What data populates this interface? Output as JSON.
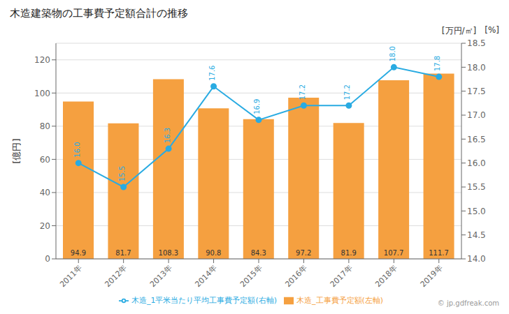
{
  "chart_data": {
    "type": "bar",
    "title": "木造建築物の工事費予定額合計の推移",
    "categories": [
      "2011年",
      "2012年",
      "2013年",
      "2014年",
      "2015年",
      "2016年",
      "2017年",
      "2018年",
      "2019年"
    ],
    "series": [
      {
        "name": "木造_工事費予定額(左軸)",
        "type": "bar",
        "color": "#F5A040",
        "values": [
          94.9,
          81.7,
          108.3,
          90.8,
          84.3,
          97.2,
          81.9,
          107.7,
          111.7
        ]
      },
      {
        "name": "木造_1平米当たり平均工事費予定額(右軸)",
        "type": "line",
        "axis": "y2",
        "color": "#29ABE2",
        "marker": "circle",
        "values": [
          16.0,
          15.5,
          16.3,
          17.6,
          16.9,
          17.2,
          17.2,
          18.0,
          17.8
        ],
        "value_labels": [
          "16.0",
          "15.5",
          "16.3",
          "17.6",
          "16.9",
          "17.2",
          "17.2",
          "18.0",
          "17.8"
        ]
      }
    ],
    "ylabel": "[億円]",
    "y2label": "[万円/㎡]",
    "annotations": [
      "[%]",
      "© jp.gdfreak.com"
    ],
    "ylim": [
      0,
      130
    ],
    "yticks": [
      0,
      20,
      40,
      60,
      80,
      100,
      120
    ],
    "y2lim": [
      14.0,
      18.5
    ],
    "y2ticks": [
      {
        "value": 14.0,
        "label": "14.0"
      },
      14.5,
      {
        "value": 15.0,
        "label": "15.0"
      },
      15.5,
      {
        "value": 16.0,
        "label": "16.0"
      },
      16.5,
      {
        "value": 17.0,
        "label": "17.0"
      },
      17.5,
      {
        "value": 18.0,
        "label": "18.0"
      },
      18.5
    ],
    "grid": true,
    "legend": "bottom",
    "data_labels": true
  }
}
